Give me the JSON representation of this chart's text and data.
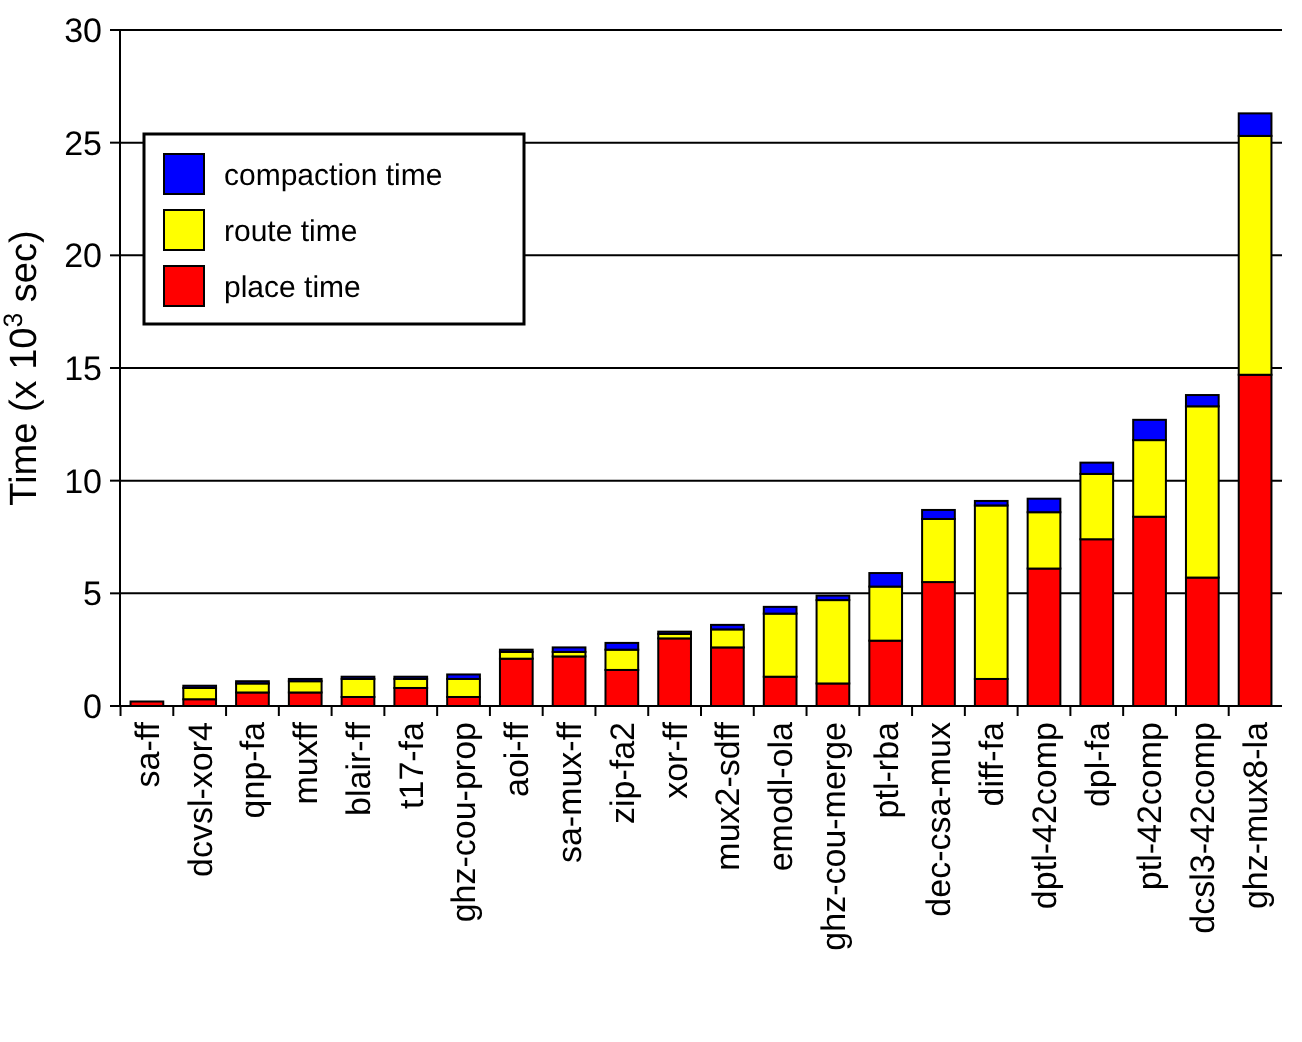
{
  "chart_data": {
    "type": "bar",
    "stacked": true,
    "ylabel": "Time (x 10$^{3}$ sec)",
    "categories": [
      "sa-ff",
      "dcvsl-xor4",
      "qnp-fa",
      "muxff",
      "blair-ff",
      "t17-fa",
      "ghz-cou-prop",
      "aoi-ff",
      "sa-mux-ff",
      "zip-fa2",
      "xor-ff",
      "mux2-sdff",
      "emodl-ola",
      "ghz-cou-merge",
      "ptl-rba",
      "dec-csa-mux",
      "diff-fa",
      "dptl-42comp",
      "dpl-fa",
      "ptl-42comp",
      "dcsl3-42comp",
      "ghz-mux8-la"
    ],
    "series": [
      {
        "name": "place time",
        "color": "#ff0000",
        "values": [
          0.2,
          0.3,
          0.6,
          0.6,
          0.4,
          0.8,
          0.4,
          2.1,
          2.2,
          1.6,
          3.0,
          2.6,
          1.3,
          1.0,
          2.9,
          5.5,
          1.2,
          6.1,
          7.4,
          8.4,
          5.7,
          14.7
        ]
      },
      {
        "name": "route time",
        "color": "#ffff00",
        "values": [
          null,
          0.5,
          0.4,
          0.5,
          0.8,
          0.4,
          0.8,
          0.3,
          0.2,
          0.9,
          0.2,
          0.8,
          2.8,
          3.7,
          2.4,
          2.8,
          7.7,
          2.5,
          2.9,
          3.4,
          7.6,
          10.6
        ]
      },
      {
        "name": "compaction time",
        "color": "#0000ff",
        "values": [
          null,
          0.1,
          0.1,
          0.1,
          0.1,
          0.1,
          0.2,
          0.1,
          0.2,
          0.3,
          0.1,
          0.2,
          0.3,
          0.2,
          0.6,
          0.4,
          0.2,
          0.6,
          0.5,
          0.9,
          0.5,
          1.0
        ]
      }
    ],
    "ylim": [
      0,
      30
    ],
    "yticks": [
      0,
      5,
      10,
      15,
      20,
      25,
      30
    ],
    "grid": "y",
    "legend": "top left"
  }
}
